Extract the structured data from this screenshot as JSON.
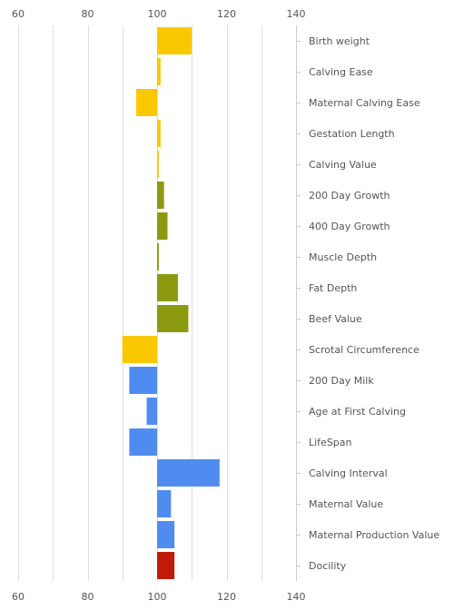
{
  "chart_data": {
    "type": "bar",
    "orientation": "horizontal",
    "xlim": [
      60,
      140
    ],
    "x_ticks": [
      "60",
      "80",
      "100",
      "120",
      "140"
    ],
    "baseline": 100,
    "grid": true,
    "ticks_position": "top and bottom",
    "categories": [
      "Birth weight",
      "Calving Ease",
      "Maternal Calving Ease",
      "Gestation Length",
      "Calving Value",
      "200 Day Growth",
      "400 Day Growth",
      "Muscle Depth",
      "Fat Depth",
      "Beef Value",
      "Scrotal Circumference",
      "200 Day Milk",
      "Age at First Calving",
      "LifeSpan",
      "Calving Interval",
      "Maternal Value",
      "Maternal Production Value",
      "Docility"
    ],
    "values": [
      110,
      101,
      94,
      101,
      100.5,
      102,
      103,
      100.5,
      106,
      109,
      90,
      92,
      97,
      92,
      118,
      104,
      105,
      105
    ],
    "colors": [
      "#fac800",
      "#fac800",
      "#fac800",
      "#fac800",
      "#fac800",
      "#8c9a10",
      "#8c9a10",
      "#8c9a10",
      "#8c9a10",
      "#8c9a10",
      "#fac800",
      "#508cf0",
      "#508cf0",
      "#508cf0",
      "#508cf0",
      "#508cf0",
      "#508cf0",
      "#c01a0a"
    ]
  }
}
